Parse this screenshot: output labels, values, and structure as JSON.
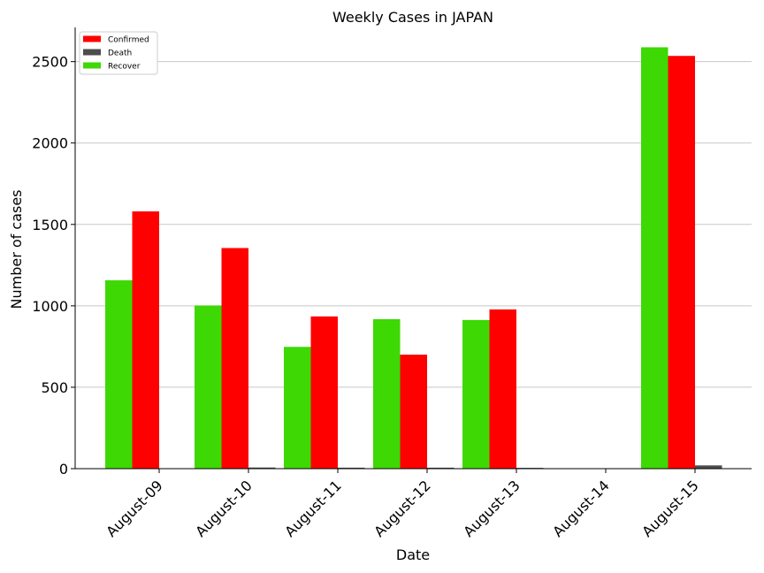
{
  "chart_data": {
    "type": "bar",
    "title": "Weekly Cases in JAPAN",
    "xlabel": "Date",
    "ylabel": "Number of cases",
    "categories": [
      "August-09",
      "August-10",
      "August-11",
      "August-12",
      "August-13",
      "August-14",
      "August-15"
    ],
    "series": [
      {
        "name": "Recover",
        "color": "#3ed805",
        "values": [
          1157,
          1002,
          748,
          918,
          913,
          0,
          2588
        ]
      },
      {
        "name": "Confirmed",
        "color": "#ff0000",
        "values": [
          1580,
          1355,
          935,
          700,
          978,
          0,
          2535
        ]
      },
      {
        "name": "Death",
        "color": "#4d4d4d",
        "values": [
          2,
          7,
          6,
          6,
          5,
          0,
          20
        ]
      }
    ],
    "legend_order": [
      "Confirmed",
      "Death",
      "Recover"
    ],
    "yticks": [
      0,
      500,
      1000,
      1500,
      2000,
      2500
    ],
    "ylim": [
      0,
      2710
    ],
    "grid": "y",
    "legend_position": "top-left"
  }
}
